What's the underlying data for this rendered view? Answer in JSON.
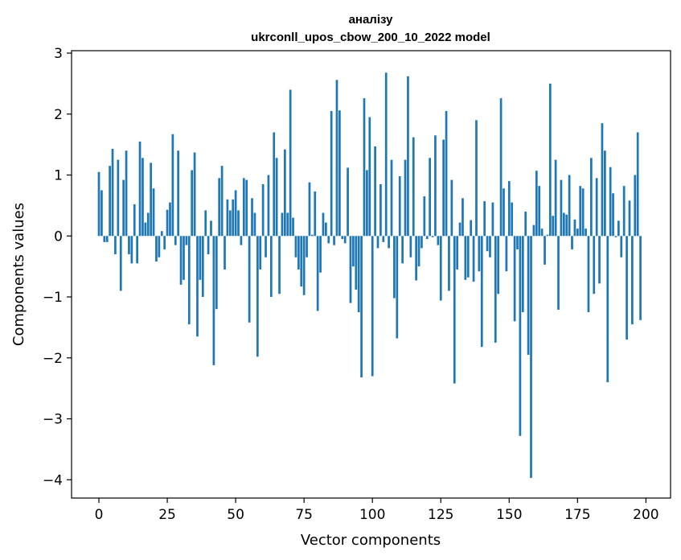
{
  "chart_data": {
    "type": "bar",
    "title_line1": "аналізу",
    "title_line2": "ukrconll_upos_cbow_200_10_2022 model",
    "xlabel": "Vector components",
    "ylabel": "Components values",
    "xlim": [
      -10,
      209
    ],
    "ylim": [
      -4.3,
      3.04
    ],
    "xticks": [
      0,
      25,
      50,
      75,
      100,
      125,
      150,
      175,
      200
    ],
    "yticks": [
      3,
      2,
      1,
      0,
      -1,
      -2,
      -3,
      -4
    ],
    "ytick_labels": [
      "3",
      "2",
      "1",
      "0",
      "−1",
      "−2",
      "−3",
      "−4"
    ],
    "bar_color": "#1f77b4",
    "grid": false,
    "values": [
      1.05,
      0.75,
      -0.1,
      -0.1,
      1.15,
      1.43,
      -0.3,
      1.25,
      -0.9,
      0.92,
      1.4,
      -0.3,
      -0.45,
      0.52,
      -0.45,
      1.55,
      1.28,
      0.22,
      0.38,
      1.2,
      0.78,
      -0.42,
      -0.35,
      0.08,
      -0.22,
      0.43,
      0.55,
      1.67,
      -0.15,
      1.4,
      -0.8,
      -0.72,
      -0.15,
      -1.45,
      1.08,
      1.37,
      -1.65,
      -0.72,
      -1.0,
      0.42,
      -0.3,
      0.25,
      -2.12,
      -1.2,
      0.95,
      1.15,
      -0.55,
      0.6,
      0.42,
      0.6,
      0.75,
      0.42,
      -0.15,
      0.95,
      0.92,
      -1.42,
      0.62,
      0.38,
      -1.98,
      -0.55,
      0.85,
      -0.35,
      1.0,
      -1.0,
      1.7,
      1.28,
      -0.95,
      0.38,
      1.42,
      0.38,
      2.4,
      0.3,
      -0.35,
      -0.55,
      -0.83,
      -0.97,
      -0.35,
      0.88,
      0.02,
      0.73,
      -1.23,
      -0.6,
      0.38,
      0.22,
      -0.12,
      2.05,
      -0.15,
      2.56,
      2.06,
      -0.05,
      -0.12,
      1.12,
      -1.1,
      -0.5,
      -0.88,
      -1.25,
      -2.32,
      2.26,
      1.08,
      1.95,
      -2.3,
      1.47,
      -0.2,
      0.85,
      -0.1,
      2.68,
      -0.2,
      1.25,
      -1.02,
      -1.68,
      0.98,
      -0.45,
      1.25,
      2.62,
      -0.35,
      1.62,
      -0.73,
      -0.5,
      -0.2,
      0.65,
      -0.05,
      1.28,
      -0.02,
      1.65,
      -0.15,
      -1.06,
      1.58,
      2.05,
      -0.9,
      0.92,
      -2.42,
      -0.55,
      0.22,
      0.62,
      -0.72,
      -0.68,
      0.26,
      -0.75,
      1.9,
      -0.58,
      -1.82,
      0.57,
      -0.25,
      -0.35,
      0.55,
      -1.75,
      -0.95,
      2.26,
      0.78,
      -0.58,
      0.9,
      0.55,
      -1.4,
      -0.22,
      -3.28,
      -1.25,
      0.4,
      -1.95,
      -3.97,
      0.18,
      1.07,
      0.82,
      0.12,
      -0.47,
      0.02,
      2.5,
      0.33,
      1.25,
      -1.21,
      0.92,
      0.38,
      0.35,
      1.0,
      -0.22,
      0.27,
      0.12,
      0.82,
      0.78,
      0.12,
      -1.25,
      1.28,
      -0.95,
      0.95,
      -0.78,
      1.85,
      1.4,
      -2.4,
      1.13,
      0.7,
      -0.02,
      0.25,
      -0.35,
      0.82,
      -1.7,
      0.58,
      -1.45,
      1.0,
      1.7,
      -1.38,
      0.0
    ]
  }
}
